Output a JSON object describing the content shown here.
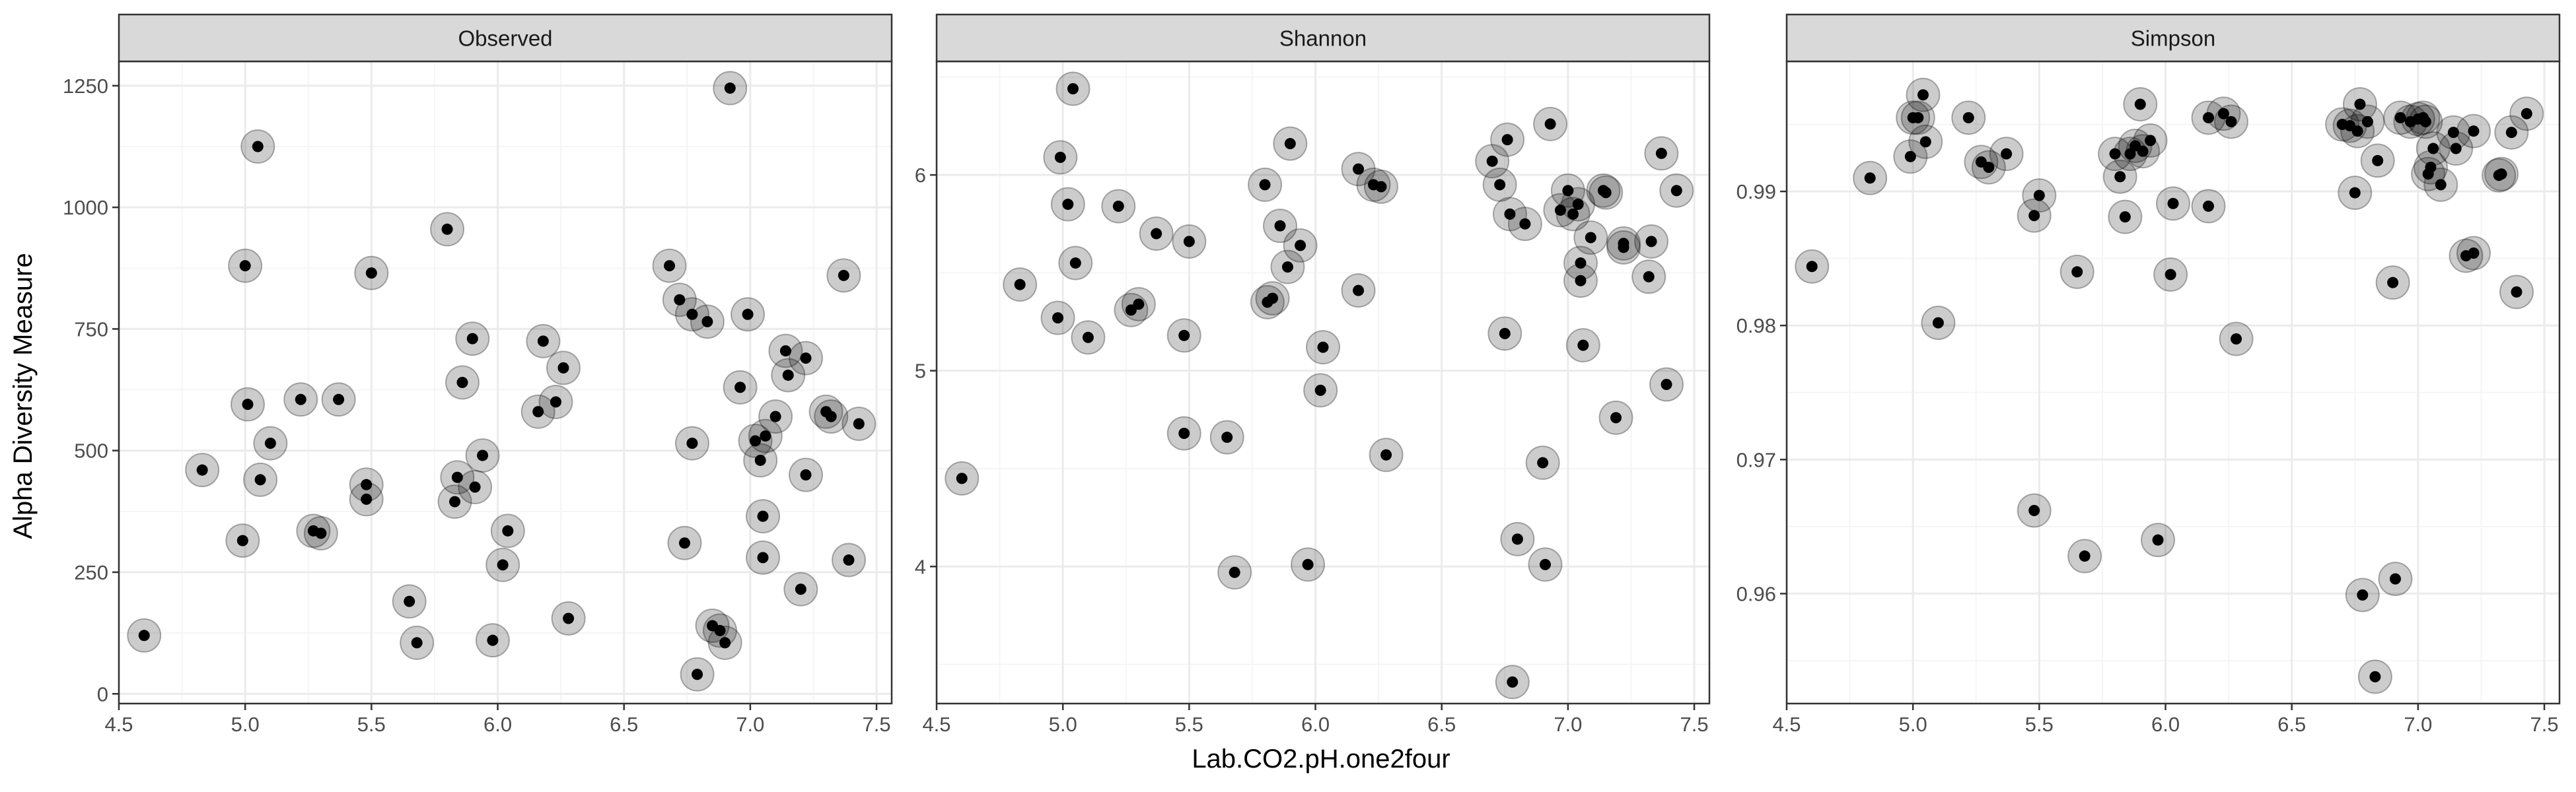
{
  "figure": {
    "ylabel": "Alpha Diversity Measure",
    "xlabel": "Lab.CO2.pH.one2four"
  },
  "colors": {
    "panel_border": "#333333",
    "strip_fill": "#d9d9d9",
    "grid_major": "#ebebeb",
    "grid_minor": "#f5f5f5",
    "point": "#000000",
    "halo": "#000000",
    "tick_text": "#4d4d4d",
    "axis_title": "#000000"
  },
  "chart_data": [
    {
      "type": "scatter",
      "facet": "Observed",
      "xlim": [
        4.5,
        7.56
      ],
      "ylim": [
        -20,
        1300
      ],
      "xticks": [
        "4.5",
        "5.0",
        "5.5",
        "6.0",
        "6.5",
        "7.0",
        "7.5"
      ],
      "yticks": [
        "0",
        "250",
        "500",
        "750",
        "1000",
        "1250"
      ],
      "ytick_values": [
        0,
        250,
        500,
        750,
        1000,
        1250
      ],
      "points": [
        [
          4.6,
          120
        ],
        [
          4.83,
          460
        ],
        [
          4.99,
          315
        ],
        [
          5.0,
          880
        ],
        [
          5.01,
          595
        ],
        [
          5.05,
          1125
        ],
        [
          5.06,
          440
        ],
        [
          5.1,
          515
        ],
        [
          5.22,
          605
        ],
        [
          5.27,
          335
        ],
        [
          5.3,
          330
        ],
        [
          5.37,
          605
        ],
        [
          5.48,
          400
        ],
        [
          5.48,
          430
        ],
        [
          5.5,
          865
        ],
        [
          5.65,
          190
        ],
        [
          5.68,
          105
        ],
        [
          5.8,
          955
        ],
        [
          5.83,
          395
        ],
        [
          5.84,
          445
        ],
        [
          5.86,
          640
        ],
        [
          5.9,
          730
        ],
        [
          5.91,
          425
        ],
        [
          5.94,
          490
        ],
        [
          5.98,
          110
        ],
        [
          6.02,
          265
        ],
        [
          6.04,
          335
        ],
        [
          6.16,
          580
        ],
        [
          6.18,
          725
        ],
        [
          6.23,
          600
        ],
        [
          6.26,
          670
        ],
        [
          6.28,
          155
        ],
        [
          6.68,
          880
        ],
        [
          6.72,
          810
        ],
        [
          6.74,
          310
        ],
        [
          6.77,
          780
        ],
        [
          6.77,
          515
        ],
        [
          6.79,
          40
        ],
        [
          6.83,
          765
        ],
        [
          6.85,
          140
        ],
        [
          6.88,
          130
        ],
        [
          6.9,
          105
        ],
        [
          6.92,
          1245
        ],
        [
          6.96,
          630
        ],
        [
          6.99,
          780
        ],
        [
          7.02,
          520
        ],
        [
          7.04,
          480
        ],
        [
          7.05,
          280
        ],
        [
          7.05,
          365
        ],
        [
          7.06,
          530
        ],
        [
          7.1,
          570
        ],
        [
          7.14,
          705
        ],
        [
          7.15,
          655
        ],
        [
          7.2,
          215
        ],
        [
          7.22,
          450
        ],
        [
          7.22,
          690
        ],
        [
          7.3,
          580
        ],
        [
          7.32,
          570
        ],
        [
          7.37,
          860
        ],
        [
          7.39,
          275
        ],
        [
          7.43,
          555
        ]
      ]
    },
    {
      "type": "scatter",
      "facet": "Shannon",
      "xlim": [
        4.5,
        7.56
      ],
      "ylim": [
        3.3,
        6.58
      ],
      "xticks": [
        "4.5",
        "5.0",
        "5.5",
        "6.0",
        "6.5",
        "7.0",
        "7.5"
      ],
      "yticks": [
        "4",
        "5",
        "6"
      ],
      "ytick_values": [
        4,
        5,
        6
      ],
      "points": [
        [
          4.6,
          4.45
        ],
        [
          4.83,
          5.44
        ],
        [
          4.98,
          5.27
        ],
        [
          4.99,
          6.09
        ],
        [
          5.02,
          5.85
        ],
        [
          5.04,
          6.44
        ],
        [
          5.05,
          5.55
        ],
        [
          5.1,
          5.17
        ],
        [
          5.22,
          5.84
        ],
        [
          5.27,
          5.31
        ],
        [
          5.3,
          5.34
        ],
        [
          5.37,
          5.7
        ],
        [
          5.48,
          5.18
        ],
        [
          5.48,
          4.68
        ],
        [
          5.5,
          5.66
        ],
        [
          5.65,
          4.66
        ],
        [
          5.68,
          3.97
        ],
        [
          5.8,
          5.95
        ],
        [
          5.81,
          5.35
        ],
        [
          5.83,
          5.37
        ],
        [
          5.86,
          5.74
        ],
        [
          5.9,
          6.16
        ],
        [
          5.89,
          5.53
        ],
        [
          5.94,
          5.64
        ],
        [
          5.97,
          4.01
        ],
        [
          6.02,
          4.9
        ],
        [
          6.03,
          5.12
        ],
        [
          6.17,
          6.03
        ],
        [
          6.17,
          5.41
        ],
        [
          6.23,
          5.95
        ],
        [
          6.26,
          5.94
        ],
        [
          6.28,
          4.57
        ],
        [
          6.7,
          6.07
        ],
        [
          6.73,
          5.95
        ],
        [
          6.75,
          5.19
        ],
        [
          6.76,
          6.18
        ],
        [
          6.77,
          5.8
        ],
        [
          6.78,
          3.41
        ],
        [
          6.8,
          4.14
        ],
        [
          6.83,
          5.75
        ],
        [
          6.9,
          4.53
        ],
        [
          6.91,
          4.01
        ],
        [
          6.93,
          6.26
        ],
        [
          6.97,
          5.82
        ],
        [
          7.0,
          5.92
        ],
        [
          7.02,
          5.8
        ],
        [
          7.04,
          5.85
        ],
        [
          7.05,
          5.55
        ],
        [
          7.05,
          5.46
        ],
        [
          7.06,
          5.13
        ],
        [
          7.09,
          5.68
        ],
        [
          7.14,
          5.92
        ],
        [
          7.15,
          5.91
        ],
        [
          7.19,
          4.76
        ],
        [
          7.22,
          5.65
        ],
        [
          7.22,
          5.63
        ],
        [
          7.32,
          5.48
        ],
        [
          7.33,
          5.66
        ],
        [
          7.37,
          6.11
        ],
        [
          7.39,
          4.93
        ],
        [
          7.43,
          5.92
        ]
      ]
    },
    {
      "type": "scatter",
      "facet": "Simpson",
      "xlim": [
        4.5,
        7.56
      ],
      "ylim": [
        0.9518,
        0.9997
      ],
      "xticks": [
        "4.5",
        "5.0",
        "5.5",
        "6.0",
        "6.5",
        "7.0",
        "7.5"
      ],
      "yticks": [
        "0.96",
        "0.97",
        "0.98",
        "0.99"
      ],
      "ytick_values": [
        0.96,
        0.97,
        0.98,
        0.99
      ],
      "points": [
        [
          4.6,
          0.9844
        ],
        [
          4.83,
          0.991
        ],
        [
          4.99,
          0.9926
        ],
        [
          5.0,
          0.9955
        ],
        [
          5.02,
          0.9955
        ],
        [
          5.04,
          0.9972
        ],
        [
          5.05,
          0.9937
        ],
        [
          5.1,
          0.9802
        ],
        [
          5.22,
          0.9955
        ],
        [
          5.27,
          0.9922
        ],
        [
          5.3,
          0.9918
        ],
        [
          5.37,
          0.9928
        ],
        [
          5.48,
          0.9882
        ],
        [
          5.48,
          0.9662
        ],
        [
          5.5,
          0.9897
        ],
        [
          5.65,
          0.984
        ],
        [
          5.68,
          0.9628
        ],
        [
          5.8,
          0.9928
        ],
        [
          5.82,
          0.9911
        ],
        [
          5.84,
          0.9881
        ],
        [
          5.86,
          0.9928
        ],
        [
          5.88,
          0.9934
        ],
        [
          5.9,
          0.9965
        ],
        [
          5.91,
          0.993
        ],
        [
          5.94,
          0.9938
        ],
        [
          5.97,
          0.964
        ],
        [
          6.02,
          0.9838
        ],
        [
          6.03,
          0.9891
        ],
        [
          6.17,
          0.9889
        ],
        [
          6.17,
          0.9955
        ],
        [
          6.23,
          0.9958
        ],
        [
          6.26,
          0.9952
        ],
        [
          6.28,
          0.979
        ],
        [
          6.7,
          0.995
        ],
        [
          6.73,
          0.9949
        ],
        [
          6.75,
          0.9899
        ],
        [
          6.76,
          0.9945
        ],
        [
          6.77,
          0.9965
        ],
        [
          6.78,
          0.9599
        ],
        [
          6.8,
          0.9952
        ],
        [
          6.83,
          0.9538
        ],
        [
          6.84,
          0.9923
        ],
        [
          6.9,
          0.9832
        ],
        [
          6.91,
          0.9611
        ],
        [
          6.93,
          0.9955
        ],
        [
          6.97,
          0.9952
        ],
        [
          7.0,
          0.9954
        ],
        [
          7.02,
          0.9955
        ],
        [
          7.03,
          0.9952
        ],
        [
          7.04,
          0.9913
        ],
        [
          7.05,
          0.9918
        ],
        [
          7.06,
          0.9932
        ],
        [
          7.09,
          0.9905
        ],
        [
          7.14,
          0.9944
        ],
        [
          7.15,
          0.9932
        ],
        [
          7.19,
          0.9852
        ],
        [
          7.22,
          0.9854
        ],
        [
          7.22,
          0.9945
        ],
        [
          7.32,
          0.9912
        ],
        [
          7.33,
          0.9913
        ],
        [
          7.37,
          0.9944
        ],
        [
          7.39,
          0.9825
        ],
        [
          7.43,
          0.9958
        ]
      ]
    }
  ]
}
